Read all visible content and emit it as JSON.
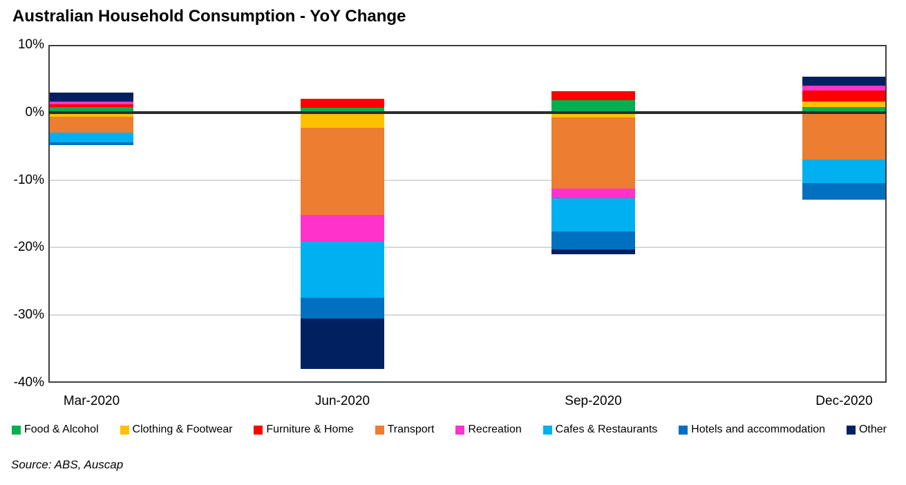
{
  "title": "Australian Household Consumption - YoY Change",
  "source": "Source: ABS, Auscap",
  "chart_data": {
    "type": "bar",
    "stacked": true,
    "title": "Australian Household Consumption - YoY Change",
    "xlabel": "",
    "ylabel": "",
    "ylim": [
      -40,
      10
    ],
    "grid": true,
    "legend_position": "bottom",
    "categories": [
      "Mar-2020",
      "Jun-2020",
      "Sep-2020",
      "Dec-2020"
    ],
    "yticks": [
      {
        "value": 10,
        "label": "10%"
      },
      {
        "value": 0,
        "label": "0%"
      },
      {
        "value": -10,
        "label": "-10%"
      },
      {
        "value": -20,
        "label": "-20%"
      },
      {
        "value": -30,
        "label": "-30%"
      },
      {
        "value": -40,
        "label": "-40%"
      }
    ],
    "series": [
      {
        "name": "Food & Alcohol",
        "color": "#00B050",
        "values": [
          0.8,
          0.7,
          1.8,
          0.8
        ]
      },
      {
        "name": "Clothing & Footwear",
        "color": "#FFC000",
        "values": [
          -0.6,
          -2.3,
          -0.7,
          0.8
        ]
      },
      {
        "name": "Furniture & Home",
        "color": "#FF0000",
        "values": [
          0.4,
          1.3,
          1.3,
          1.7
        ]
      },
      {
        "name": "Transport",
        "color": "#ED7D31",
        "values": [
          -2.4,
          -12.9,
          -10.6,
          -7.0
        ]
      },
      {
        "name": "Recreation",
        "color": "#FF33CC",
        "values": [
          0.4,
          -3.9,
          -1.4,
          0.7
        ]
      },
      {
        "name": "Cafes & Restaurants",
        "color": "#00B0F0",
        "values": [
          -1.4,
          -8.3,
          -4.9,
          -3.5
        ]
      },
      {
        "name": "Hotels and accommodation",
        "color": "#0070C0",
        "values": [
          -0.4,
          -3.1,
          -2.7,
          -2.4
        ]
      },
      {
        "name": "Other",
        "color": "#002060",
        "values": [
          1.3,
          -7.5,
          -0.7,
          1.3
        ]
      }
    ]
  },
  "layout_colors": {
    "gridline": "#d9d9d9",
    "axis_line": "#3f3f3f",
    "zero_line": "#2b2b2b",
    "background": "#ffffff"
  }
}
